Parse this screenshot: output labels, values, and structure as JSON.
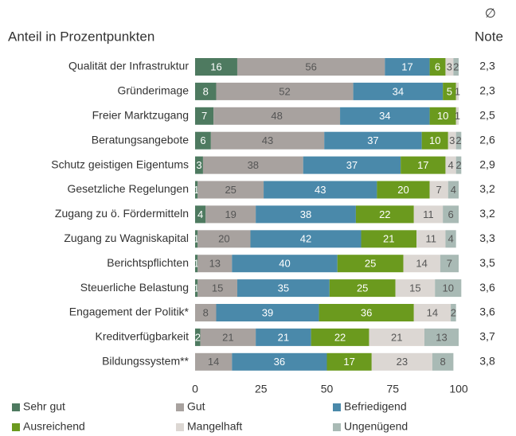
{
  "chart_data": {
    "type": "stacked-bar-horizontal",
    "title": "Anteil in Prozentpunkten",
    "note_symbol": "∅",
    "note_title": "Note",
    "categories": [
      "Qualität der Infrastruktur",
      "Gründerimage",
      "Freier Marktzugang",
      "Beratungsangebote",
      "Schutz geistigen Eigentums",
      "Gesetzliche Regelungen",
      "Zugang zu ö. Fördermitteln",
      "Zugang zu Wagniskapital",
      "Berichtspflichten",
      "Steuerliche Belastung",
      "Engagement der Politik*",
      "Kreditverfügbarkeit",
      "Bildungssystem**"
    ],
    "notes": [
      "2,3",
      "2,3",
      "2,5",
      "2,6",
      "2,9",
      "3,2",
      "3,2",
      "3,3",
      "3,5",
      "3,6",
      "3,6",
      "3,7",
      "3,8"
    ],
    "series": [
      {
        "name": "Sehr gut",
        "color": "#4e7a60",
        "label_color": "#ffffff",
        "values": [
          16,
          8,
          7,
          6,
          3,
          1,
          4,
          1,
          1,
          1,
          0,
          2,
          0
        ]
      },
      {
        "name": "Gut",
        "color": "#a8a29f",
        "label_color": "#555555",
        "values": [
          56,
          52,
          48,
          43,
          38,
          25,
          19,
          20,
          13,
          15,
          8,
          21,
          14
        ]
      },
      {
        "name": "Befriedigend",
        "color": "#4a89aa",
        "label_color": "#ffffff",
        "values": [
          17,
          34,
          34,
          37,
          37,
          43,
          38,
          42,
          40,
          35,
          39,
          21,
          36
        ]
      },
      {
        "name": "Ausreichend",
        "color": "#6b9a1e",
        "label_color": "#ffffff",
        "values": [
          6,
          5,
          10,
          10,
          17,
          20,
          22,
          21,
          25,
          25,
          36,
          22,
          17
        ]
      },
      {
        "name": "Mangelhaft",
        "color": "#dcd7d3",
        "label_color": "#555555",
        "values": [
          3,
          1,
          1,
          3,
          4,
          7,
          11,
          11,
          14,
          15,
          14,
          21,
          23
        ]
      },
      {
        "name": "Ungenügend",
        "color": "#a9bab5",
        "label_color": "#555555",
        "values": [
          2,
          0,
          0,
          2,
          2,
          4,
          6,
          4,
          7,
          10,
          2,
          13,
          8
        ]
      }
    ],
    "xlim": [
      0,
      100
    ],
    "xticks": [
      0,
      25,
      50,
      75,
      100
    ]
  }
}
